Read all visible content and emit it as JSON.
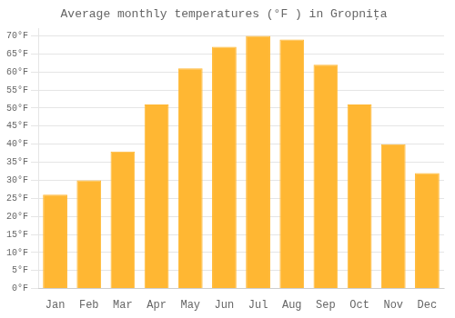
{
  "chart_data": {
    "type": "bar",
    "title": "Average monthly temperatures (°F ) in Gropniţa",
    "categories": [
      "Jan",
      "Feb",
      "Mar",
      "Apr",
      "May",
      "Jun",
      "Jul",
      "Aug",
      "Sep",
      "Oct",
      "Nov",
      "Dec"
    ],
    "values": [
      26,
      30,
      38,
      51,
      61,
      67,
      70,
      69,
      62,
      51,
      40,
      32
    ],
    "color": "#FFB733",
    "ylim": [
      0,
      72
    ],
    "yticks": [
      {
        "value": 0,
        "label": "0°F"
      },
      {
        "value": 5,
        "label": "5°F"
      },
      {
        "value": 10,
        "label": "10°F"
      },
      {
        "value": 15,
        "label": "15°F"
      },
      {
        "value": 20,
        "label": "20°F"
      },
      {
        "value": 25,
        "label": "25°F"
      },
      {
        "value": 30,
        "label": "30°F"
      },
      {
        "value": 35,
        "label": "35°F"
      },
      {
        "value": 40,
        "label": "40°F"
      },
      {
        "value": 45,
        "label": "45°F"
      },
      {
        "value": 50,
        "label": "50°F"
      },
      {
        "value": 55,
        "label": "55°F"
      },
      {
        "value": 60,
        "label": "60°F"
      },
      {
        "value": 65,
        "label": "65°F"
      },
      {
        "value": 70,
        "label": "70°F"
      }
    ],
    "grid": true
  }
}
